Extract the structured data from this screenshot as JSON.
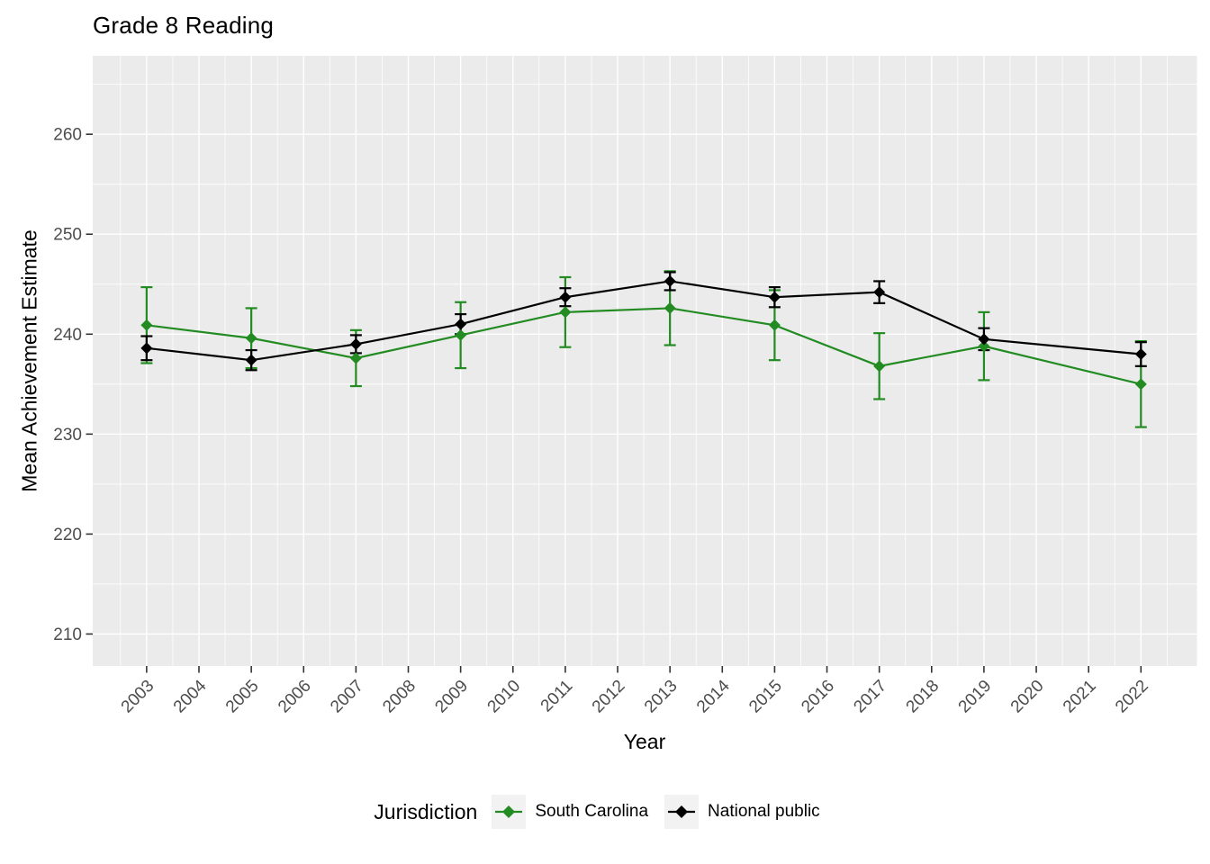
{
  "title": "Grade 8 Reading",
  "colors": {
    "south_carolina": "#228B22",
    "national_public": "#000000",
    "panel_bg": "#EBEBEB",
    "grid": "#FFFFFF",
    "tick_label": "#4D4D4D",
    "axis_tick": "#333333",
    "legend_key_bg": "#F2F2F2"
  },
  "legend": {
    "title": "Jurisdiction",
    "entries": [
      {
        "label": "South Carolina",
        "color": "#228B22"
      },
      {
        "label": "National public",
        "color": "#000000"
      }
    ]
  },
  "chart_data": {
    "type": "line",
    "title": "Grade 8 Reading",
    "xlabel": "Year",
    "ylabel": "Mean Achievement Estimate",
    "x": [
      2003,
      2005,
      2007,
      2009,
      2011,
      2013,
      2015,
      2017,
      2019,
      2022
    ],
    "series": [
      {
        "name": "South Carolina",
        "color": "#228B22",
        "values": [
          240.9,
          239.6,
          237.6,
          239.9,
          242.2,
          242.6,
          240.9,
          236.8,
          238.8,
          235.0
        ],
        "errors": [
          3.8,
          3.0,
          2.8,
          3.3,
          3.5,
          3.7,
          3.5,
          3.3,
          3.4,
          4.3
        ]
      },
      {
        "name": "National public",
        "color": "#000000",
        "values": [
          238.6,
          237.4,
          239.0,
          241.0,
          243.7,
          245.3,
          243.7,
          244.2,
          239.5,
          238.0
        ],
        "errors": [
          1.2,
          1.0,
          0.9,
          1.0,
          0.9,
          0.9,
          1.0,
          1.1,
          1.1,
          1.2
        ]
      }
    ],
    "x_ticks": [
      2003,
      2004,
      2005,
      2006,
      2007,
      2008,
      2009,
      2010,
      2011,
      2012,
      2013,
      2014,
      2015,
      2016,
      2017,
      2018,
      2019,
      2020,
      2021,
      2022
    ],
    "y_ticks": [
      210,
      220,
      230,
      240,
      250,
      260
    ],
    "xlim": [
      2001.97,
      2023.07
    ],
    "ylim": [
      206.8,
      267.85
    ],
    "grid": true,
    "minor_grid": true,
    "error_bars": true,
    "point_shape": "diamond",
    "legend_position": "bottom"
  }
}
